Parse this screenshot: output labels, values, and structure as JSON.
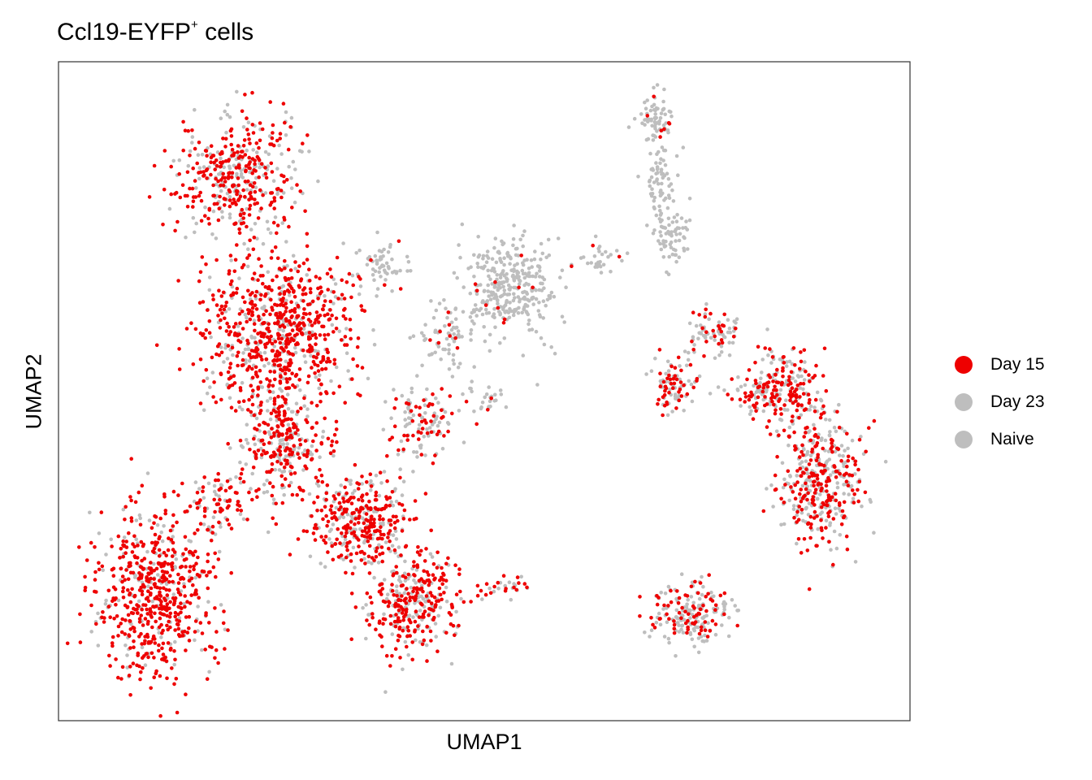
{
  "chart_data": {
    "type": "scatter",
    "title_main": "Ccl19-EYFP",
    "title_sup": "+",
    "title_tail": " cells",
    "xlabel": "UMAP1",
    "ylabel": "UMAP2",
    "grid": false,
    "axis_ticks": false,
    "legend_position": "right",
    "series": [
      {
        "name": "Day 15",
        "color": "#EE0000"
      },
      {
        "name": "Day 23",
        "color": "#BEBEBE"
      },
      {
        "name": "Naive",
        "color": "#BEBEBE"
      }
    ],
    "clusters": [
      {
        "cx": 290,
        "cy": 215,
        "rx": 70,
        "ry": 75,
        "n": 420,
        "pred": 0.6
      },
      {
        "cx": 340,
        "cy": 410,
        "rx": 95,
        "ry": 95,
        "n": 760,
        "pred": 0.75
      },
      {
        "cx": 345,
        "cy": 540,
        "rx": 60,
        "ry": 70,
        "n": 300,
        "pred": 0.6
      },
      {
        "cx": 190,
        "cy": 730,
        "rx": 75,
        "ry": 105,
        "n": 620,
        "pred": 0.78
      },
      {
        "cx": 270,
        "cy": 620,
        "rx": 35,
        "ry": 40,
        "n": 80,
        "pred": 0.55
      },
      {
        "cx": 440,
        "cy": 640,
        "rx": 65,
        "ry": 55,
        "n": 350,
        "pred": 0.65
      },
      {
        "cx": 510,
        "cy": 740,
        "rx": 60,
        "ry": 60,
        "n": 350,
        "pred": 0.65
      },
      {
        "cx": 520,
        "cy": 520,
        "rx": 45,
        "ry": 45,
        "n": 120,
        "pred": 0.5
      },
      {
        "cx": 470,
        "cy": 330,
        "rx": 30,
        "ry": 35,
        "n": 60,
        "pred": 0.15
      },
      {
        "cx": 630,
        "cy": 350,
        "rx": 55,
        "ry": 60,
        "n": 320,
        "pred": 0.02
      },
      {
        "cx": 550,
        "cy": 420,
        "rx": 40,
        "ry": 50,
        "n": 80,
        "pred": 0.1
      },
      {
        "cx": 810,
        "cy": 150,
        "rx": 25,
        "ry": 35,
        "n": 80,
        "pred": 0.05
      },
      {
        "cx": 810,
        "cy": 230,
        "rx": 15,
        "ry": 40,
        "n": 60,
        "pred": 0.0
      },
      {
        "cx": 825,
        "cy": 290,
        "rx": 25,
        "ry": 35,
        "n": 70,
        "pred": 0.0
      },
      {
        "cx": 740,
        "cy": 320,
        "rx": 30,
        "ry": 20,
        "n": 30,
        "pred": 0.05
      },
      {
        "cx": 880,
        "cy": 410,
        "rx": 35,
        "ry": 30,
        "n": 80,
        "pred": 0.3
      },
      {
        "cx": 830,
        "cy": 475,
        "rx": 30,
        "ry": 35,
        "n": 90,
        "pred": 0.5
      },
      {
        "cx": 960,
        "cy": 480,
        "rx": 55,
        "ry": 45,
        "n": 260,
        "pred": 0.55
      },
      {
        "cx": 1010,
        "cy": 590,
        "rx": 55,
        "ry": 80,
        "n": 400,
        "pred": 0.5
      },
      {
        "cx": 850,
        "cy": 755,
        "rx": 50,
        "ry": 38,
        "n": 200,
        "pred": 0.4
      },
      {
        "cx": 630,
        "cy": 720,
        "rx": 25,
        "ry": 15,
        "n": 25,
        "pred": 0.6
      },
      {
        "cx": 600,
        "cy": 490,
        "rx": 25,
        "ry": 20,
        "n": 25,
        "pred": 0.1
      }
    ]
  }
}
